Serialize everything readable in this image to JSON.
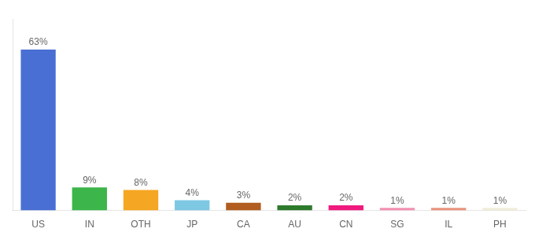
{
  "chart_data": {
    "type": "bar",
    "categories": [
      "US",
      "IN",
      "OTH",
      "JP",
      "CA",
      "AU",
      "CN",
      "SG",
      "IL",
      "PH"
    ],
    "values": [
      63,
      9,
      8,
      4,
      3,
      2,
      2,
      1,
      1,
      1
    ],
    "value_labels": [
      "63%",
      "9%",
      "8%",
      "4%",
      "3%",
      "2%",
      "2%",
      "1%",
      "1%",
      "1%"
    ],
    "colors": [
      "#4a6fd4",
      "#3cb54a",
      "#f5a623",
      "#7ec8e3",
      "#b05d1f",
      "#2d7a2d",
      "#f0197d",
      "#f48fb1",
      "#e8927c",
      "#f0edd8"
    ],
    "ylim": [
      0,
      75
    ],
    "grid": false,
    "data_labels": true,
    "tick_labels": "x"
  }
}
